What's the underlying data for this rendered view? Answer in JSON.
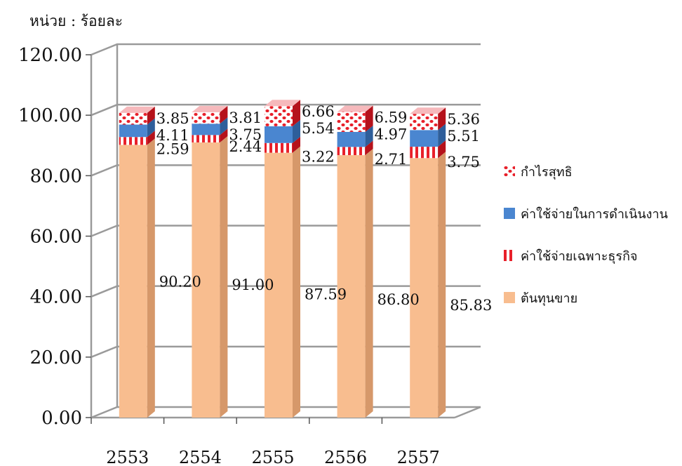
{
  "chart_data": {
    "type": "bar",
    "stacked": true,
    "unit_label": "หน่วย : ร้อยละ",
    "categories": [
      "2553",
      "2554",
      "2555",
      "2556",
      "2557"
    ],
    "ylim": [
      0,
      120
    ],
    "yticks": [
      "0.00",
      "20.00",
      "40.00",
      "60.00",
      "80.00",
      "100.00",
      "120.00"
    ],
    "grid": true,
    "legend_position": "right",
    "series": [
      {
        "name": "ต้นทุนขาย",
        "color": "#F8BD8F",
        "values": [
          90.2,
          91.0,
          87.59,
          86.8,
          85.83
        ],
        "labels": [
          "90.20",
          "91.00",
          "87.59",
          "86.80",
          "85.83"
        ]
      },
      {
        "name": "ค่าใช้จ่ายเฉพาะธุรกิจ",
        "color": "#E8202A",
        "values": [
          2.59,
          2.44,
          3.22,
          2.71,
          3.75
        ],
        "labels": [
          "2.59",
          "2.44",
          "3.22",
          "2.71",
          "3.75"
        ]
      },
      {
        "name": "ค่าใช้จ่ายในการดำเนินงาน",
        "color": "#4A86D0",
        "values": [
          4.11,
          3.75,
          5.54,
          4.97,
          5.51
        ],
        "labels": [
          "4.11",
          "3.75",
          "5.54",
          "4.97",
          "5.51"
        ]
      },
      {
        "name": "กำไรสุทธิ",
        "color": "#E8202A",
        "values": [
          3.85,
          3.81,
          6.66,
          6.59,
          5.36
        ],
        "labels": [
          "3.85",
          "3.81",
          "6.66",
          "6.59",
          "5.36"
        ]
      }
    ]
  }
}
